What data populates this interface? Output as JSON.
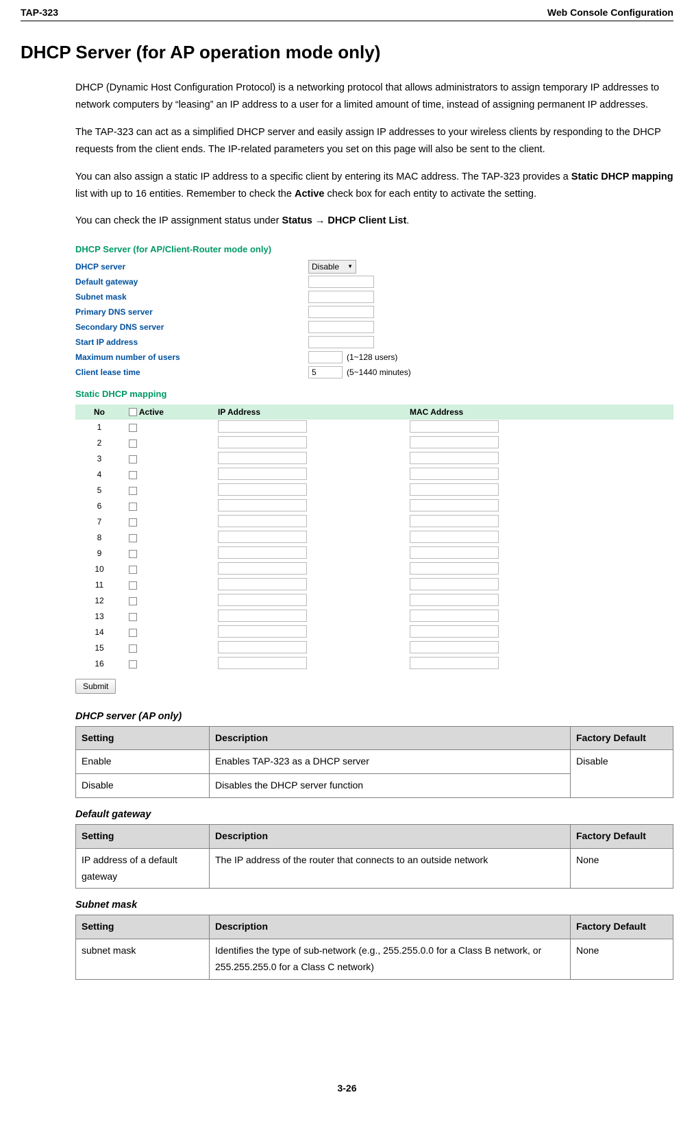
{
  "header": {
    "left": "TAP-323",
    "right": "Web Console Configuration"
  },
  "title": "DHCP Server (for AP operation mode only)",
  "paras": {
    "p1": "DHCP (Dynamic Host Configuration Protocol) is a networking protocol that allows administrators to assign temporary IP addresses to network computers by “leasing” an IP address to a user for a limited amount of time, instead of assigning permanent IP addresses.",
    "p2": "The TAP-323 can act as a simplified DHCP server and easily assign IP addresses to your wireless clients by responding to the DHCP requests from the client ends. The IP-related parameters you set on this page will also be sent to the client.",
    "p3a": "You can also assign a static IP address to a specific client by entering its MAC address. The TAP-323 provides a ",
    "p3b": "Static DHCP mapping",
    "p3c": " list with up to 16 entities. Remember to check the ",
    "p3d": "Active",
    "p3e": " check box for each entity to activate the setting.",
    "p4a": "You can check the IP assignment status under ",
    "p4b": "Status → DHCP Client List",
    "p4c": "."
  },
  "ss": {
    "title1": "DHCP Server (for AP/Client-Router mode only)",
    "rows": [
      {
        "label": "DHCP server",
        "type": "select",
        "value": "Disable",
        "hint": ""
      },
      {
        "label": "Default gateway",
        "type": "input",
        "value": "",
        "hint": ""
      },
      {
        "label": "Subnet mask",
        "type": "input",
        "value": "",
        "hint": ""
      },
      {
        "label": "Primary DNS server",
        "type": "input",
        "value": "",
        "hint": ""
      },
      {
        "label": "Secondary DNS server",
        "type": "input",
        "value": "",
        "hint": ""
      },
      {
        "label": "Start IP address",
        "type": "input",
        "value": "",
        "hint": ""
      },
      {
        "label": "Maximum number of users",
        "type": "input-sm",
        "value": "",
        "hint": "(1~128 users)"
      },
      {
        "label": "Client lease time",
        "type": "input-sm",
        "value": "5",
        "hint": "(5~1440 minutes)"
      }
    ],
    "title2": "Static DHCP mapping",
    "th": {
      "no": "No",
      "active": "Active",
      "ip": "IP Address",
      "mac": "MAC Address"
    },
    "rowcount": 16,
    "submit": "Submit"
  },
  "tables": {
    "dhcp": {
      "title": "DHCP server (AP only)",
      "head": {
        "c1": "Setting",
        "c2": "Description",
        "c3": "Factory Default"
      },
      "rows": [
        {
          "c1": "Enable",
          "c2": "Enables TAP-323 as a DHCP server",
          "c3": "Disable"
        },
        {
          "c1": "Disable",
          "c2": "Disables the DHCP server function"
        }
      ]
    },
    "gw": {
      "title": "Default gateway",
      "head": {
        "c1": "Setting",
        "c2": "Description",
        "c3": "Factory Default"
      },
      "rows": [
        {
          "c1": "IP address of a default gateway",
          "c2": "The IP address of the router that connects to an outside network",
          "c3": "None"
        }
      ]
    },
    "mask": {
      "title": "Subnet mask",
      "head": {
        "c1": "Setting",
        "c2": "Description",
        "c3": "Factory Default"
      },
      "rows": [
        {
          "c1": "subnet mask",
          "c2": "Identifies the type of sub-network (e.g., 255.255.0.0 for a Class B network, or 255.255.255.0 for a Class C network)",
          "c3": "None"
        }
      ]
    }
  },
  "footer": "3-26"
}
